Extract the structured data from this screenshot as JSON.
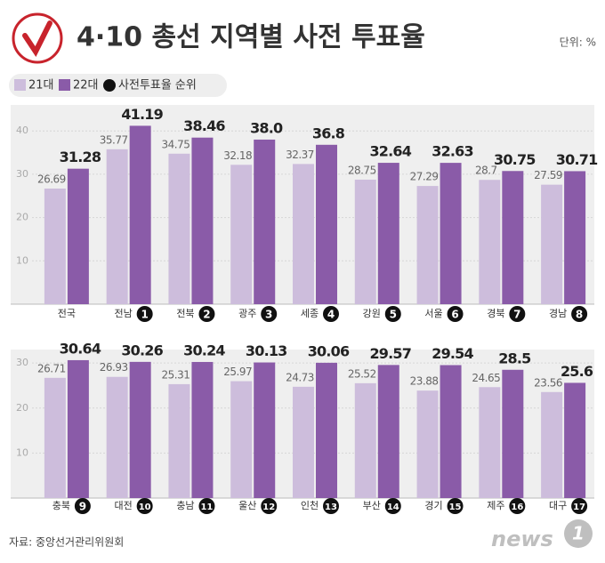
{
  "title": "4·10 총선 지역별 사전 투표율",
  "unit": "단위: %",
  "rank_legend": "사전투표율 순위",
  "source": "자료: 중앙선거관리위원회",
  "brand": "news",
  "brand_number": "1",
  "chart_data": [
    {
      "type": "bar",
      "categories": [
        "전국",
        "전남",
        "전북",
        "광주",
        "세종",
        "강원",
        "서울",
        "경북",
        "경남"
      ],
      "ranks": [
        null,
        1,
        2,
        3,
        4,
        5,
        6,
        7,
        8
      ],
      "series": [
        {
          "name": "21대",
          "color": "#cdbddc",
          "values": [
            26.69,
            35.77,
            34.75,
            32.18,
            32.37,
            28.75,
            27.29,
            28.7,
            27.59
          ]
        },
        {
          "name": "22대",
          "color": "#8a5ba8",
          "values": [
            31.28,
            41.19,
            38.46,
            38.0,
            36.8,
            32.64,
            32.63,
            30.75,
            30.71
          ],
          "value_labels": [
            "31.28",
            "41.19",
            "38.46",
            "38.0",
            "36.8",
            "32.64",
            "32.63",
            "30.75",
            "30.71"
          ]
        }
      ],
      "ylim": [
        0,
        46
      ],
      "yticks": [
        10,
        20,
        30,
        40
      ]
    },
    {
      "type": "bar",
      "categories": [
        "충북",
        "대전",
        "충남",
        "울산",
        "인천",
        "부산",
        "경기",
        "제주",
        "대구"
      ],
      "ranks": [
        9,
        10,
        11,
        12,
        13,
        14,
        15,
        16,
        17
      ],
      "series": [
        {
          "name": "21대",
          "color": "#cdbddc",
          "values": [
            26.71,
            26.93,
            25.31,
            25.97,
            24.73,
            25.52,
            23.88,
            24.65,
            23.56
          ]
        },
        {
          "name": "22대",
          "color": "#8a5ba8",
          "values": [
            30.64,
            30.26,
            30.24,
            30.13,
            30.06,
            29.57,
            29.54,
            28.5,
            25.6
          ]
        }
      ],
      "ylim": [
        0,
        33
      ],
      "yticks": [
        10,
        20,
        30
      ]
    }
  ]
}
